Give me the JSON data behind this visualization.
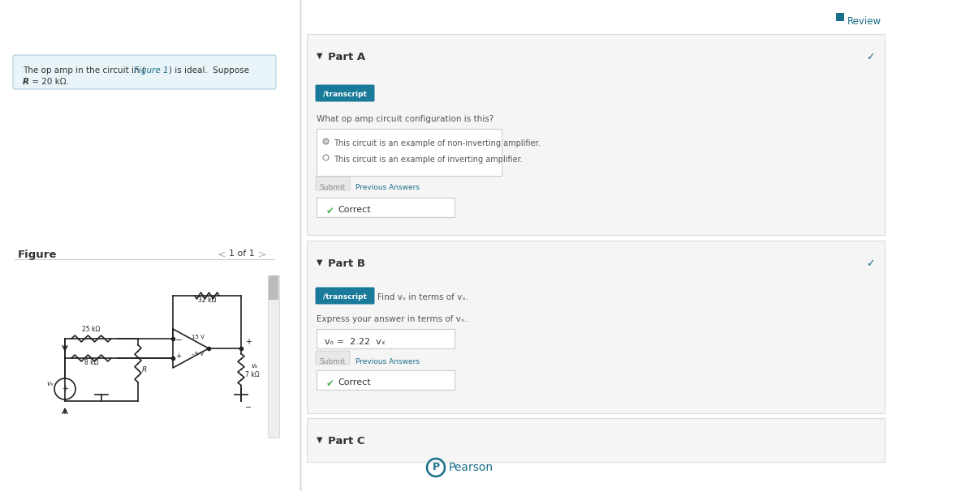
{
  "bg_color": "#ffffff",
  "problem_text_bg": "#e8f4f8",
  "review_color": "#1a6e8a",
  "review_text": "Review",
  "part_a_label": "Part A",
  "part_a_transcript_bg": "#1a7a9a",
  "part_a_transcript_text": "/transcript",
  "part_a_question": "What op amp circuit configuration is this?",
  "part_a_option1": "This circuit is an example of non-inverting amplifier.",
  "part_a_option2": "This circuit is an example of inverting amplifier.",
  "part_a_submit": "Submit",
  "part_a_prev": "Previous Answers",
  "part_a_correct": "Correct",
  "part_b_label": "Part B",
  "part_b_transcript_bg": "#1a7a9a",
  "part_b_transcript_text": "/transcript",
  "part_b_find_text": "Find vₒ in terms of vₓ.",
  "part_b_express": "Express your answer in terms of vₓ.",
  "part_b_answer": "vₒ =  2.22  vₓ",
  "part_b_submit": "Submit",
  "part_b_prev": "Previous Answers",
  "part_b_correct": "Correct",
  "part_c_label": "Part C",
  "pearson_text": "Pearson",
  "pearson_color": "#1a6e8a",
  "check_color": "#4caf50",
  "submit_bg": "#e8e8e8",
  "submit_text_color": "#888888",
  "correct_box_bg": "#ffffff",
  "correct_box_border": "#cccccc",
  "section_bg": "#f5f5f5",
  "section_border": "#dddddd",
  "option_box_bg": "#ffffff",
  "option_box_border": "#cccccc",
  "answer_box_bg": "#ffffff",
  "answer_box_border": "#cccccc",
  "teal_color": "#1a7a9a",
  "dark_text": "#333333",
  "medium_text": "#555555",
  "link_color": "#1a6e8a"
}
